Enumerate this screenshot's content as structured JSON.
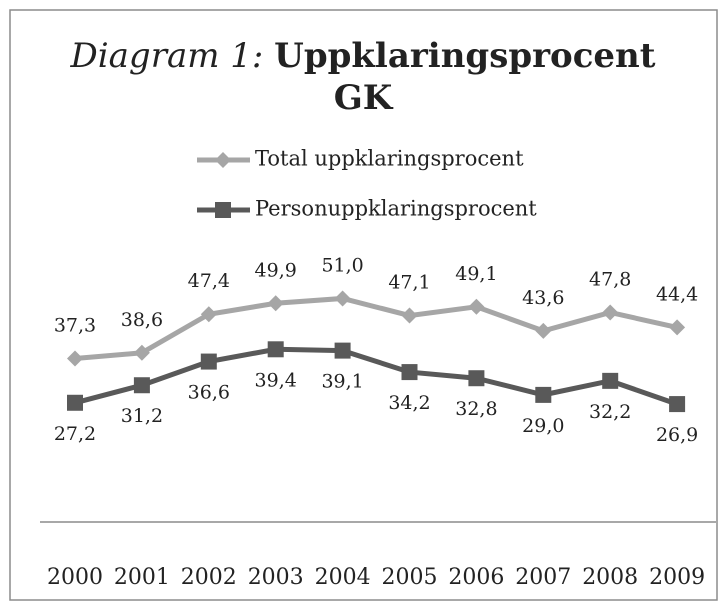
{
  "chart_data": {
    "type": "line",
    "title_prefix": "Diagram 1:",
    "title": "Uppklaringsprocent GK",
    "categories": [
      "2000",
      "2001",
      "2002",
      "2003",
      "2004",
      "2005",
      "2006",
      "2007",
      "2008",
      "2009"
    ],
    "series": [
      {
        "name": "Total uppklaringsprocent",
        "color": "#a6a6a6",
        "marker": "diamond",
        "values": [
          37.3,
          38.6,
          47.4,
          49.9,
          51.0,
          47.1,
          49.1,
          43.6,
          47.8,
          44.4
        ],
        "value_labels": [
          "37,3",
          "38,6",
          "47,4",
          "49,9",
          "51,0",
          "47,1",
          "49,1",
          "43,6",
          "47,8",
          "44,4"
        ]
      },
      {
        "name": "Personuppklaringsprocent",
        "color": "#595959",
        "marker": "square",
        "values": [
          27.2,
          31.2,
          36.6,
          39.4,
          39.1,
          34.2,
          32.8,
          29.0,
          32.2,
          26.9
        ],
        "value_labels": [
          "27,2",
          "31,2",
          "36,6",
          "39,4",
          "39,1",
          "34,2",
          "32,8",
          "29,0",
          "32,2",
          "26,9"
        ]
      }
    ],
    "ylim": [
      0,
      60
    ],
    "legend": "top"
  }
}
